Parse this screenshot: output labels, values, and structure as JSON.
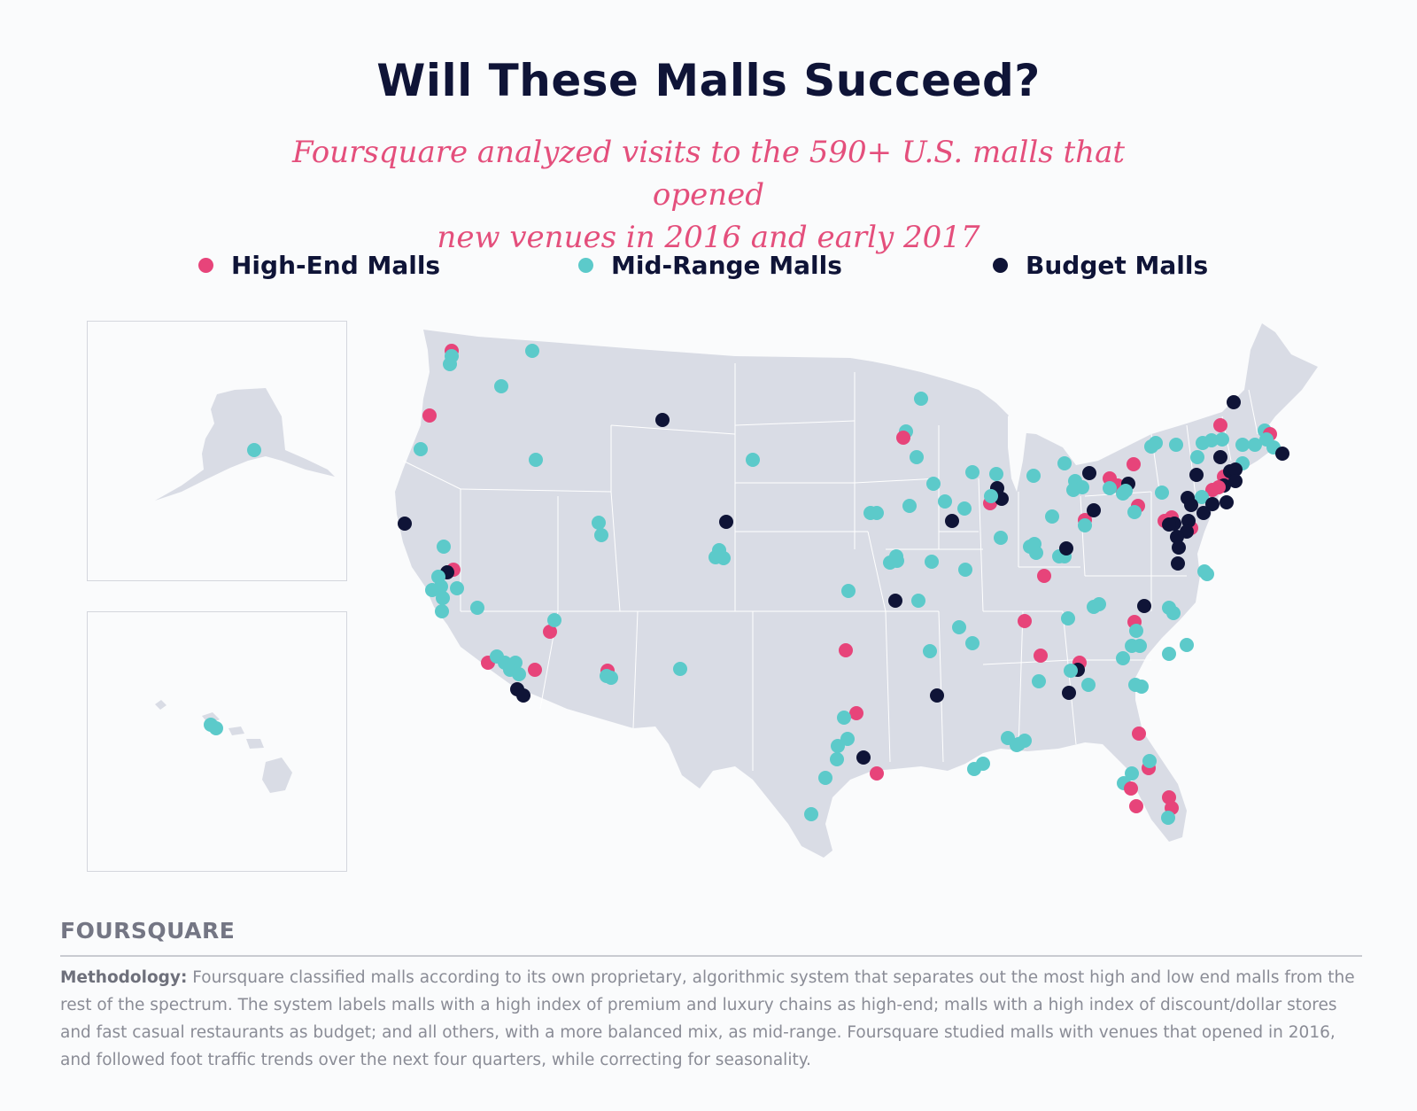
{
  "header": {
    "title": "Will These Malls Succeed?",
    "subtitle_line1": "Foursquare analyzed visits to the 590+ U.S. malls that opened",
    "subtitle_line2": "new venues in 2016 and early 2017"
  },
  "legend": {
    "items": [
      {
        "label": "High-End Malls",
        "color": "#e7447a"
      },
      {
        "label": "Mid-Range Malls",
        "color": "#5ccaca"
      },
      {
        "label": "Budget Malls",
        "color": "#0f1437"
      }
    ]
  },
  "map": {
    "land_color": "#d9dce5",
    "border_color": "#ffffff",
    "insets": [
      "Alaska",
      "Hawaii"
    ],
    "marker_categories": [
      "high",
      "mid",
      "budget"
    ]
  },
  "footer": {
    "brand": "FOURSQUARE",
    "methodology_label": "Methodology:",
    "methodology_text": "Foursquare classified malls according to its own proprietary, algorithmic system that separates out the most high and low end malls from the rest of the spectrum. The system labels malls with a high index of premium and luxury chains as high-end; malls with a high index of discount/dollar stores and fast casual restaurants as budget; and all others, with a more balanced mix, as mid-range. Foursquare studied malls with venues that opened in 2016, and followed foot traffic trends over the next four quarters, while correcting for seasonality."
  }
}
